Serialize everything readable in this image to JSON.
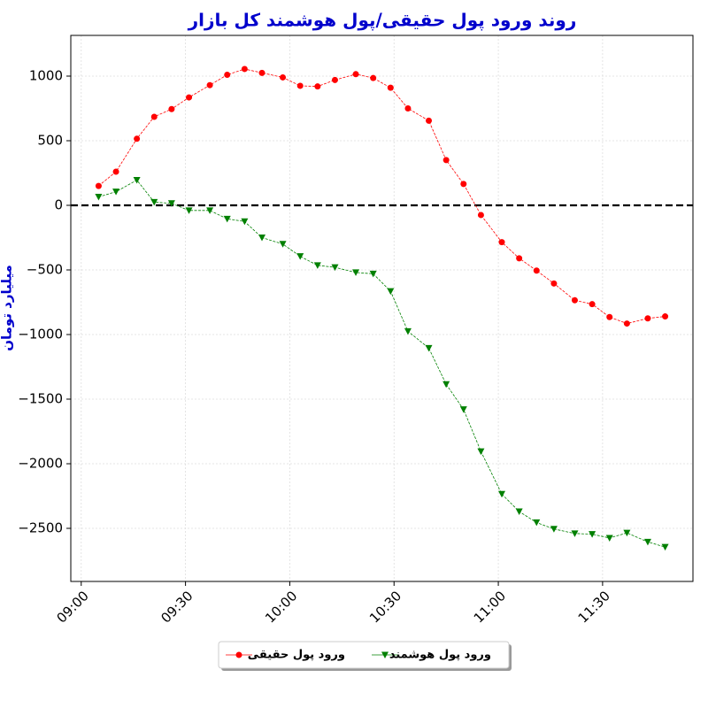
{
  "chart_data": {
    "type": "line",
    "title": "روند ورود پول حقیقی/پول هوشمند کل بازار",
    "y_label": "میلیارد تومان",
    "x": [
      "09:05",
      "09:10",
      "09:16",
      "09:21",
      "09:26",
      "09:31",
      "09:37",
      "09:42",
      "09:47",
      "09:52",
      "09:58",
      "10:03",
      "10:08",
      "10:13",
      "10:19",
      "10:24",
      "10:29",
      "10:34",
      "10:40",
      "10:45",
      "10:50",
      "10:55",
      "11:01",
      "11:06",
      "11:11",
      "11:16",
      "11:22",
      "11:27",
      "11:32",
      "11:37",
      "11:43",
      "11:48"
    ],
    "series": [
      {
        "name": "ورود پول حقیقی",
        "color": "#ff0000",
        "marker": "circle",
        "values": [
          150,
          260,
          515,
          685,
          745,
          835,
          930,
          1010,
          1055,
          1025,
          990,
          925,
          920,
          970,
          1015,
          985,
          910,
          750,
          655,
          350,
          165,
          -75,
          -285,
          -410,
          -505,
          -605,
          -735,
          -765,
          -865,
          -915,
          -875,
          -860
        ]
      },
      {
        "name": "ورود پول هوشمند",
        "color": "#008000",
        "marker": "triangle-down",
        "values": [
          65,
          105,
          195,
          25,
          15,
          -40,
          -40,
          -105,
          -125,
          -250,
          -300,
          -395,
          -465,
          -480,
          -520,
          -530,
          -665,
          -975,
          -1105,
          -1385,
          -1580,
          -1905,
          -2235,
          -2370,
          -2455,
          -2505,
          -2540,
          -2545,
          -2575,
          -2535,
          -2605,
          -2645
        ]
      }
    ],
    "xlim": [
      "08:57",
      "11:56"
    ],
    "xticks": [
      "09:00",
      "09:30",
      "10:00",
      "10:30",
      "11:00",
      "11:30"
    ],
    "ylim": [
      -2911,
      1315
    ],
    "yticks": [
      {
        "value": -2500,
        "label": "−2500"
      },
      {
        "value": -2000,
        "label": "−2000"
      },
      {
        "value": -1500,
        "label": "−1500"
      },
      {
        "value": -1000,
        "label": "−1000"
      },
      {
        "value": -500,
        "label": "−500"
      },
      0,
      500,
      1000
    ],
    "reference_line": 0,
    "grid": true,
    "legend": "bottom"
  }
}
